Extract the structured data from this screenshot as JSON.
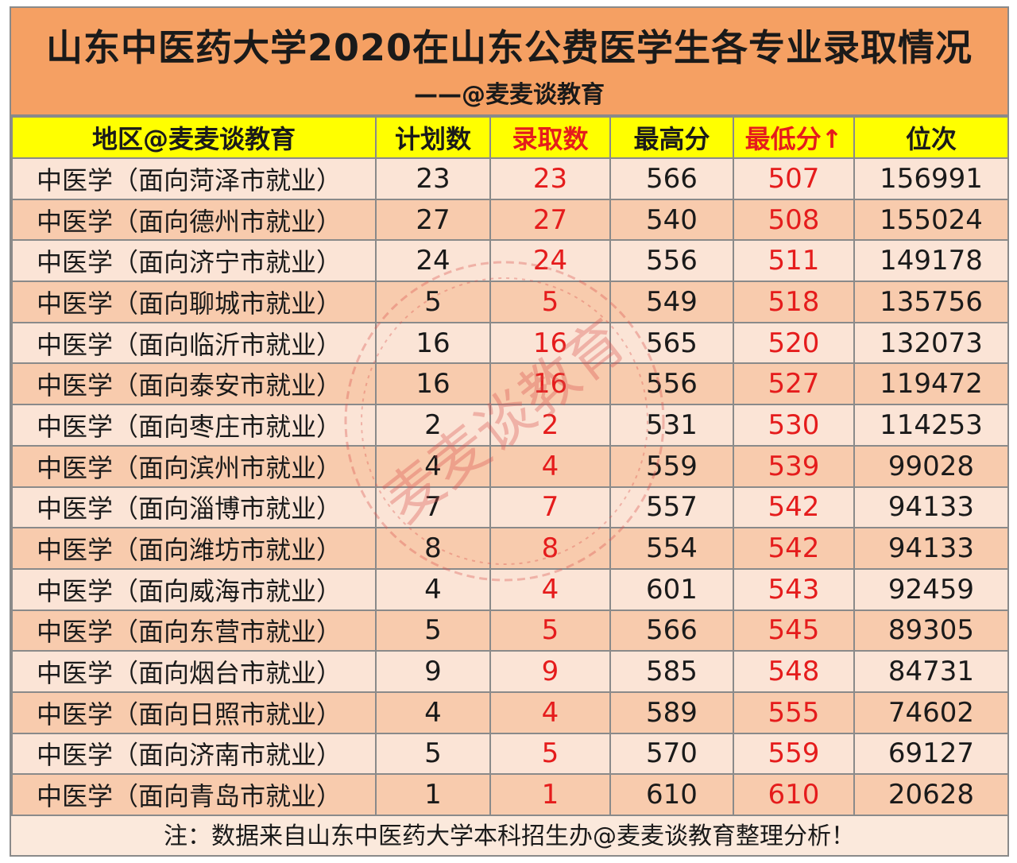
{
  "title": "山东中医药大学2020在山东公费医学生各专业录取情况",
  "subtitle": "——@麦麦谈教育",
  "headers": [
    "地区@麦麦谈教育",
    "计划数",
    "录取数",
    "最高分",
    "最低分↑",
    "位次"
  ],
  "rows": [
    [
      "中医学（面向菏泽市就业）",
      "23",
      "23",
      "566",
      "507",
      "156991"
    ],
    [
      "中医学（面向德州市就业）",
      "27",
      "27",
      "540",
      "508",
      "155024"
    ],
    [
      "中医学（面向济宁市就业）",
      "24",
      "24",
      "556",
      "511",
      "149178"
    ],
    [
      "中医学（面向聊城市就业）",
      "5",
      "5",
      "549",
      "518",
      "135756"
    ],
    [
      "中医学（面向临沂市就业）",
      "16",
      "16",
      "565",
      "520",
      "132073"
    ],
    [
      "中医学（面向泰安市就业）",
      "16",
      "16",
      "556",
      "527",
      "119472"
    ],
    [
      "中医学（面向枣庄市就业）",
      "2",
      "2",
      "531",
      "530",
      "114253"
    ],
    [
      "中医学（面向滨州市就业）",
      "4",
      "4",
      "559",
      "539",
      "99028"
    ],
    [
      "中医学（面向淄博市就业）",
      "7",
      "7",
      "557",
      "542",
      "94133"
    ],
    [
      "中医学（面向潍坊市就业）",
      "8",
      "8",
      "554",
      "542",
      "94133"
    ],
    [
      "中医学（面向威海市就业）",
      "4",
      "4",
      "601",
      "543",
      "92459"
    ],
    [
      "中医学（面向东营市就业）",
      "5",
      "5",
      "566",
      "545",
      "89305"
    ],
    [
      "中医学（面向烟台市就业）",
      "9",
      "9",
      "585",
      "548",
      "84731"
    ],
    [
      "中医学（面向日照市就业）",
      "4",
      "4",
      "589",
      "555",
      "74602"
    ],
    [
      "中医学（面向济南市就业）",
      "5",
      "5",
      "570",
      "559",
      "69127"
    ],
    [
      "中医学（面向青岛市就业）",
      "1",
      "1",
      "610",
      "610",
      "20628"
    ]
  ],
  "footer": "注：数据来自山东中医药大学本科招生办@麦麦谈教育整理分析！",
  "watermark": "麦麦谈教育",
  "colors": {
    "title_bg": "#f5a063",
    "header_bg": "#ffff00",
    "row_light": "#fbe4d6",
    "row_dark": "#f8cbad",
    "highlight_red": "#e51c1c",
    "border": "#8a8a8a"
  }
}
